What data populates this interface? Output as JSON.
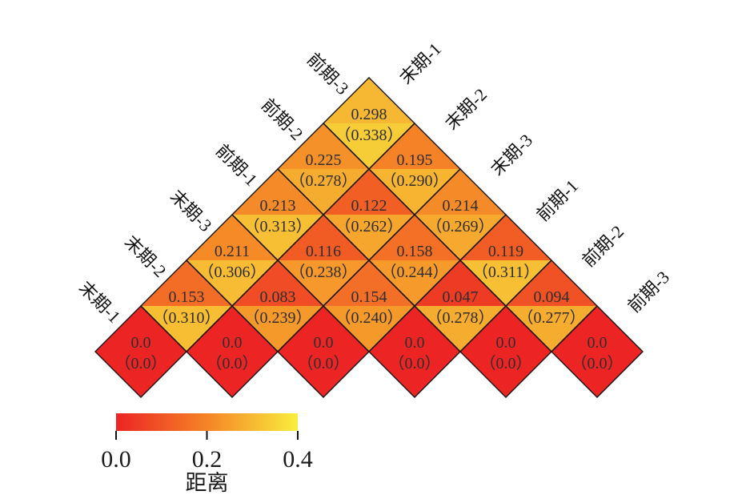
{
  "chart_data": {
    "type": "heatmap",
    "subtype": "rotated-lower-triangle-distance-matrix",
    "items": [
      "末期-1",
      "末期-2",
      "末期-3",
      "前期-1",
      "前期-2",
      "前期-3"
    ],
    "labels_left_bottom_to_top": [
      "末期-1",
      "末期-2",
      "末期-3",
      "前期-1",
      "前期-2",
      "前期-3"
    ],
    "labels_right_top_to_bottom": [
      "末期-1",
      "末期-2",
      "末期-3",
      "前期-1",
      "前期-2",
      "前期-3"
    ],
    "cell_note": "each diamond split horizontally: upper half colored/labeled by main value, lower half by parenthesized value",
    "paren_open": "（",
    "paren_close": "）",
    "cells": [
      {
        "i": 0,
        "j": 0,
        "a": "末期-1",
        "b": "末期-1",
        "main": "0.0",
        "alt": "0.0"
      },
      {
        "i": 1,
        "j": 1,
        "a": "末期-2",
        "b": "末期-2",
        "main": "0.0",
        "alt": "0.0"
      },
      {
        "i": 2,
        "j": 2,
        "a": "末期-3",
        "b": "末期-3",
        "main": "0.0",
        "alt": "0.0"
      },
      {
        "i": 3,
        "j": 3,
        "a": "前期-1",
        "b": "前期-1",
        "main": "0.0",
        "alt": "0.0"
      },
      {
        "i": 4,
        "j": 4,
        "a": "前期-2",
        "b": "前期-2",
        "main": "0.0",
        "alt": "0.0"
      },
      {
        "i": 5,
        "j": 5,
        "a": "前期-3",
        "b": "前期-3",
        "main": "0.0",
        "alt": "0.0"
      },
      {
        "i": 0,
        "j": 1,
        "a": "末期-1",
        "b": "末期-2",
        "main": "0.153",
        "alt": "0.310"
      },
      {
        "i": 1,
        "j": 2,
        "a": "末期-2",
        "b": "末期-3",
        "main": "0.083",
        "alt": "0.239"
      },
      {
        "i": 2,
        "j": 3,
        "a": "末期-3",
        "b": "前期-1",
        "main": "0.154",
        "alt": "0.240"
      },
      {
        "i": 3,
        "j": 4,
        "a": "前期-1",
        "b": "前期-2",
        "main": "0.047",
        "alt": "0.278"
      },
      {
        "i": 4,
        "j": 5,
        "a": "前期-2",
        "b": "前期-3",
        "main": "0.094",
        "alt": "0.277"
      },
      {
        "i": 0,
        "j": 2,
        "a": "末期-1",
        "b": "末期-3",
        "main": "0.211",
        "alt": "0.306"
      },
      {
        "i": 1,
        "j": 3,
        "a": "末期-2",
        "b": "前期-1",
        "main": "0.116",
        "alt": "0.238"
      },
      {
        "i": 2,
        "j": 4,
        "a": "末期-3",
        "b": "前期-2",
        "main": "0.158",
        "alt": "0.244"
      },
      {
        "i": 3,
        "j": 5,
        "a": "前期-1",
        "b": "前期-3",
        "main": "0.119",
        "alt": "0.311"
      },
      {
        "i": 0,
        "j": 3,
        "a": "末期-1",
        "b": "前期-1",
        "main": "0.213",
        "alt": "0.313"
      },
      {
        "i": 1,
        "j": 4,
        "a": "末期-2",
        "b": "前期-2",
        "main": "0.122",
        "alt": "0.262"
      },
      {
        "i": 2,
        "j": 5,
        "a": "末期-3",
        "b": "前期-3",
        "main": "0.214",
        "alt": "0.269"
      },
      {
        "i": 0,
        "j": 4,
        "a": "末期-1",
        "b": "前期-2",
        "main": "0.225",
        "alt": "0.278"
      },
      {
        "i": 1,
        "j": 5,
        "a": "末期-2",
        "b": "前期-3",
        "main": "0.195",
        "alt": "0.290"
      },
      {
        "i": 0,
        "j": 5,
        "a": "末期-1",
        "b": "前期-3",
        "main": "0.298",
        "alt": "0.338"
      }
    ],
    "colorbar": {
      "title": "距离",
      "tick_labels": [
        "0.0",
        "0.2",
        "0.4"
      ],
      "min": 0,
      "max": 0.4,
      "gradient": [
        "#EC2424",
        "#F58426",
        "#F8EE3E"
      ]
    },
    "value_text_color": "#2e2e2e",
    "cell_border_color": "#141414"
  }
}
